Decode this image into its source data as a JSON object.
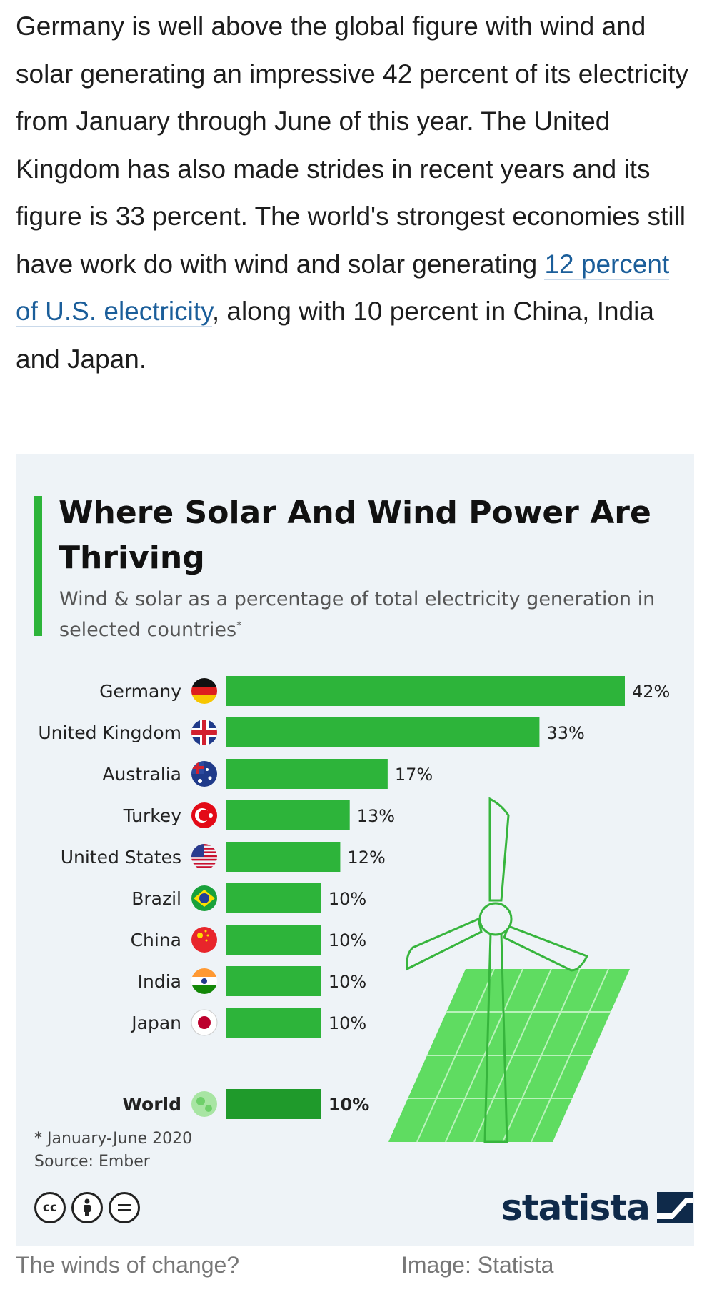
{
  "article": {
    "text_before_link": "Germany is well above the global figure with wind and solar generating an impressive 42 percent of its electricity from January through June of this year. The United Kingdom has also made strides in recent years and its figure is 33 percent. The world's strongest economies still have work do with wind and solar generating ",
    "link_text": "12 percent of U.S. electricity",
    "text_after_link": ", along with 10 percent in China, India and Japan."
  },
  "chart": {
    "title": "Where Solar And Wind Power Are Thriving",
    "subtitle": "Wind & solar as a percentage of total electricity generation in selected countries",
    "subtitle_mark": "*",
    "footnote": "* January-June 2020",
    "source": "Source: Ember",
    "brand": "statista",
    "license_icons": [
      "creative-commons-icon",
      "attribution-icon",
      "no-derivatives-icon"
    ]
  },
  "chart_data": {
    "type": "bar",
    "orientation": "horizontal",
    "title": "Where Solar And Wind Power Are Thriving",
    "subtitle": "Wind & solar as a percentage of total electricity generation in selected countries*",
    "categories": [
      "Germany",
      "United Kingdom",
      "Australia",
      "Turkey",
      "United States",
      "Brazil",
      "China",
      "India",
      "Japan",
      "World"
    ],
    "values": [
      42,
      33,
      17,
      13,
      12,
      10,
      10,
      10,
      10,
      10
    ],
    "value_labels": [
      "42%",
      "33%",
      "17%",
      "13%",
      "12%",
      "10%",
      "10%",
      "10%",
      "10%",
      "10%"
    ],
    "xlim": [
      0,
      42
    ],
    "grid": false,
    "colors": {
      "bar": "#2db43a",
      "world_bar": "#1f9a2b",
      "illustration": "#5fdc61"
    }
  },
  "captions": {
    "left": "The winds of change?",
    "right": "Image: Statista"
  }
}
